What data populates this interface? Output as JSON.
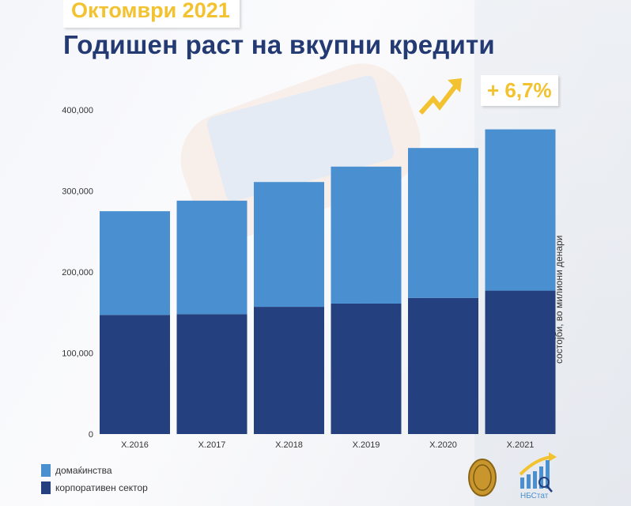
{
  "header": {
    "subtitle": "Октомври 2021",
    "title": "Годишен раст на вкупни кредити",
    "growth": "+ 6,7%"
  },
  "unit_label": "состојби, во милиони денари",
  "logos": {
    "nbstat": "НБСтат"
  },
  "colors": {
    "households": "#4a8fd0",
    "corporate": "#25407f",
    "accent": "#f2c230",
    "title": "#243a73"
  },
  "chart_data": {
    "type": "bar",
    "stacked": true,
    "title": "Годишен раст на вкупни кредити",
    "categories": [
      "X.2016",
      "X.2017",
      "X.2018",
      "X.2019",
      "X.2020",
      "X.2021"
    ],
    "series": [
      {
        "name": "корпоративен сектор",
        "values": [
          147000,
          148000,
          157000,
          161000,
          168000,
          177000
        ]
      },
      {
        "name": "домаќинства",
        "values": [
          128000,
          140000,
          154000,
          169000,
          185000,
          199000
        ]
      }
    ],
    "ylim": [
      0,
      400000
    ],
    "yticks": [
      0,
      100000,
      200000,
      300000,
      400000
    ],
    "ytick_labels": [
      "0",
      "100,000",
      "200,000",
      "300,000",
      "400,000"
    ],
    "ylabel": "состојби, во милиони денари",
    "legend": [
      "домаќинства",
      "корпоративен сектор"
    ],
    "legend_position": "bottom-left",
    "grid": false
  }
}
